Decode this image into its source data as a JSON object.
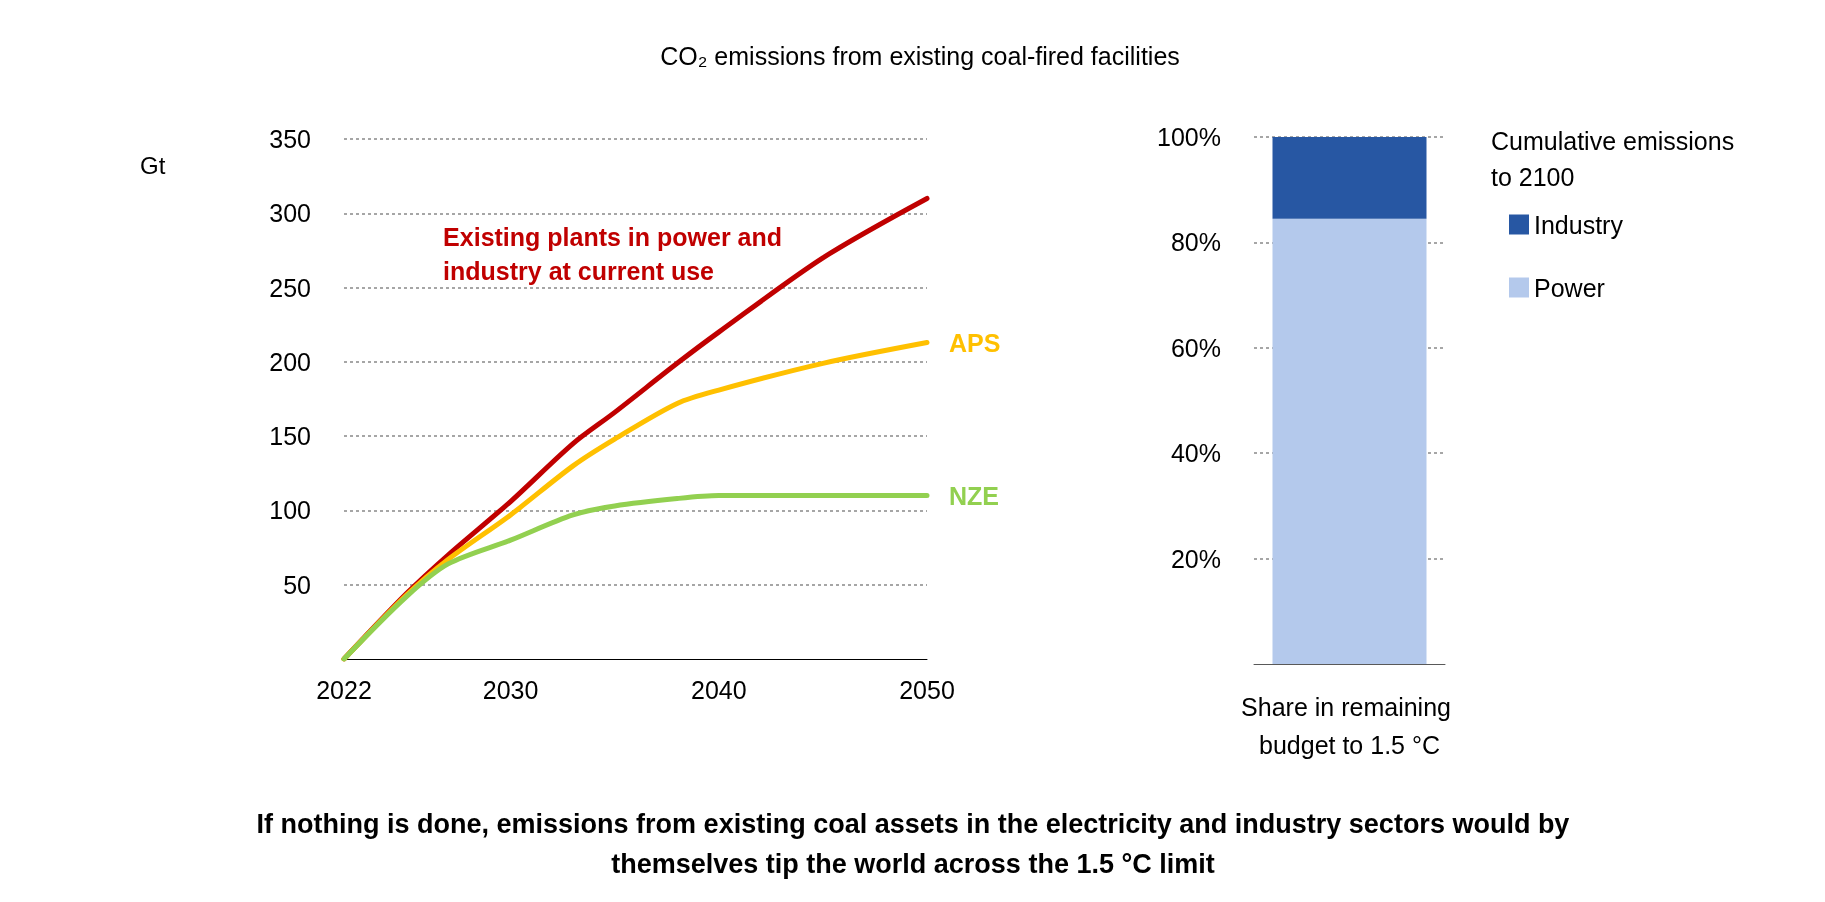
{
  "chart_data": [
    {
      "type": "line",
      "title": "CO₂ emissions from existing coal-fired facilities",
      "ylabel": "Gt",
      "x": [
        2022,
        2025,
        2027,
        2030,
        2033,
        2035,
        2038,
        2040,
        2045,
        2050
      ],
      "series": [
        {
          "name": "Existing plants in power and industry at current use",
          "color": "#c00000",
          "values": [
            0,
            44,
            70,
            106,
            145,
            166,
            199,
            220,
            270,
            310
          ]
        },
        {
          "name": "APS",
          "color": "#ffc000",
          "values": [
            0,
            43,
            67,
            97,
            130,
            148,
            172,
            181,
            199,
            213
          ]
        },
        {
          "name": "NZE",
          "color": "#92d050",
          "values": [
            0,
            42,
            64,
            80,
            97,
            103,
            108,
            110,
            110,
            110
          ]
        }
      ],
      "xlim": [
        2022,
        2050
      ],
      "xticks": [
        2022,
        2030,
        2040,
        2050
      ],
      "ylim": [
        0,
        350
      ],
      "yticks": [
        50,
        100,
        150,
        200,
        250,
        300,
        350
      ],
      "grid": "y",
      "legend": false,
      "marker": "none",
      "line_style": "solid",
      "annotations": [
        "If nothing is done, emissions from existing coal assets in the electricity and industry sectors would by themselves tip the world across the 1.5 °C limit"
      ]
    },
    {
      "type": "bar",
      "stacked": true,
      "categories": [
        "Share in remaining budget to 1.5 °C"
      ],
      "legend_title": "Cumulative emissions to 2100",
      "series": [
        {
          "name": "Power",
          "color": "#b4c9ec",
          "values": [
            84.5
          ]
        },
        {
          "name": "Industry",
          "color": "#2757a3",
          "values": [
            15.5
          ]
        }
      ],
      "ylim": [
        0,
        100
      ],
      "yticks": [
        {
          "value": 20,
          "label": "20%"
        },
        {
          "value": 40,
          "label": "40%"
        },
        {
          "value": 60,
          "label": "60%"
        },
        {
          "value": 80,
          "label": "80%"
        },
        {
          "value": 100,
          "label": "100%"
        }
      ],
      "grid": "y",
      "legend": "right"
    }
  ]
}
